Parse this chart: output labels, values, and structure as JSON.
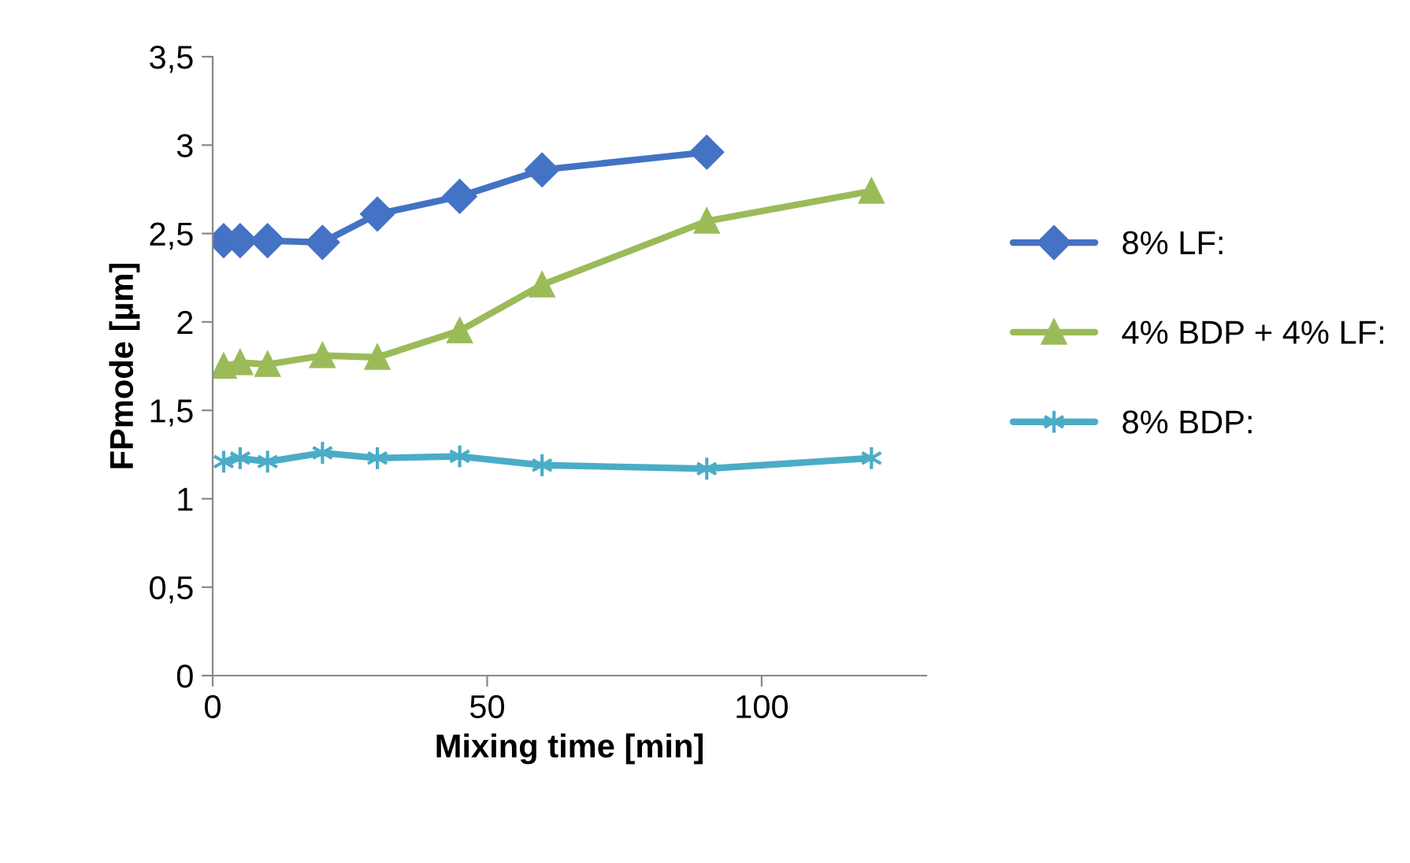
{
  "chart_data": {
    "type": "line",
    "xlabel": "Mixing time [min]",
    "ylabel": "FPmode [µm]",
    "xlim": [
      0,
      130
    ],
    "xticks": [
      0,
      50,
      100
    ],
    "ylim": [
      0,
      3.5
    ],
    "yticks": [
      0,
      {
        "value": 0.5,
        "label": "0,5"
      },
      1,
      {
        "value": 1.5,
        "label": "1,5"
      },
      2,
      {
        "value": 2.5,
        "label": "2,5"
      },
      3,
      {
        "value": 3.5,
        "label": "3,5"
      }
    ],
    "grid": false,
    "legend": "right",
    "line_style": "solid",
    "series": [
      {
        "name": "8% LF:",
        "color": "#4472c4",
        "marker": "diamond",
        "x": [
          2,
          5,
          10,
          20,
          30,
          45,
          60,
          90
        ],
        "values": [
          2.46,
          2.46,
          2.46,
          2.45,
          2.61,
          2.71,
          2.86,
          2.96
        ]
      },
      {
        "name": "4% BDP + 4% LF:",
        "color": "#9bbb59",
        "marker": "triangle",
        "x": [
          2,
          5,
          10,
          20,
          30,
          45,
          60,
          90,
          120
        ],
        "values": [
          1.75,
          1.77,
          1.76,
          1.81,
          1.8,
          1.95,
          2.21,
          2.57,
          2.74
        ]
      },
      {
        "name": "8% BDP:",
        "color": "#4bacc6",
        "marker": "cross",
        "x": [
          2,
          5,
          10,
          20,
          30,
          45,
          60,
          90,
          120
        ],
        "values": [
          1.21,
          1.23,
          1.21,
          1.26,
          1.23,
          1.24,
          1.19,
          1.17,
          1.23
        ]
      }
    ]
  }
}
